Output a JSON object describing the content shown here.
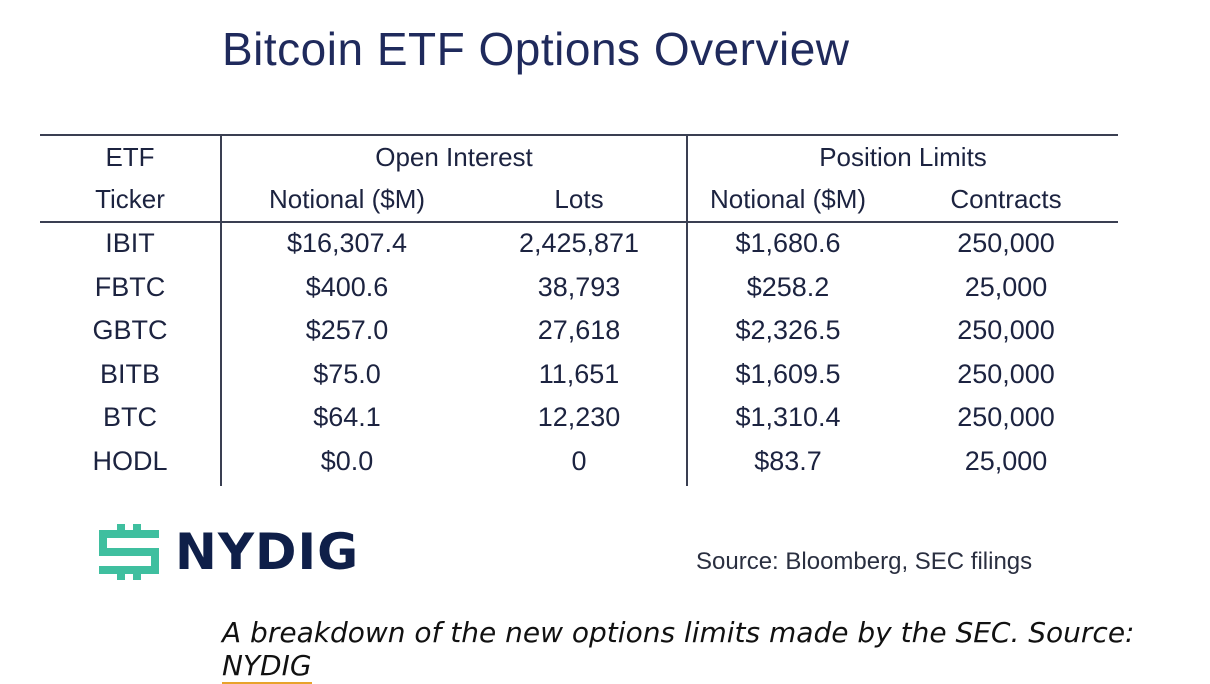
{
  "title": "Bitcoin ETF Options Overview",
  "table": {
    "headers": {
      "etf_line1": "ETF",
      "etf_line2": "Ticker",
      "open_interest": "Open Interest",
      "oi_notional": "Notional ($M)",
      "oi_lots": "Lots",
      "position_limits": "Position Limits",
      "pl_notional": "Notional ($M)",
      "pl_contracts": "Contracts"
    },
    "rows": [
      {
        "ticker": "IBIT",
        "oi_notional": "$16,307.4",
        "lots": "2,425,871",
        "pl_notional": "$1,680.6",
        "contracts": "250,000"
      },
      {
        "ticker": "FBTC",
        "oi_notional": "$400.6",
        "lots": "38,793",
        "pl_notional": "$258.2",
        "contracts": "25,000"
      },
      {
        "ticker": "GBTC",
        "oi_notional": "$257.0",
        "lots": "27,618",
        "pl_notional": "$2,326.5",
        "contracts": "250,000"
      },
      {
        "ticker": "BITB",
        "oi_notional": "$75.0",
        "lots": "11,651",
        "pl_notional": "$1,609.5",
        "contracts": "250,000"
      },
      {
        "ticker": "BTC",
        "oi_notional": "$64.1",
        "lots": "12,230",
        "pl_notional": "$1,310.4",
        "contracts": "250,000"
      },
      {
        "ticker": "HODL",
        "oi_notional": "$0.0",
        "lots": "0",
        "pl_notional": "$83.7",
        "contracts": "25,000"
      }
    ]
  },
  "logo": {
    "text": "NYDIG",
    "icon": "nydig-logo-icon",
    "color": "#3fbf9f"
  },
  "source": "Source: Bloomberg, SEC filings",
  "caption": {
    "text": "A breakdown of the new options limits made by the SEC. Source: ",
    "link": "NYDIG"
  }
}
